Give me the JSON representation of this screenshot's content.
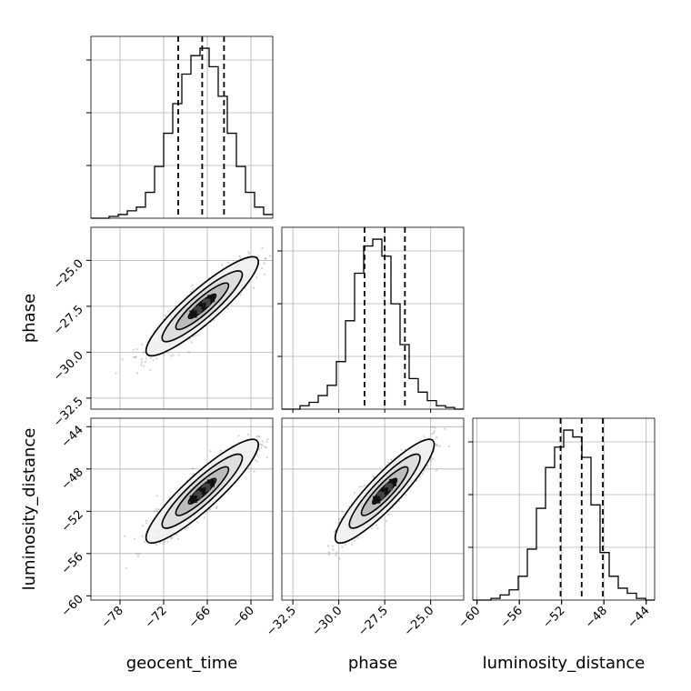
{
  "chart_data": {
    "type": "corner",
    "parameters": [
      "geocent_time",
      "phase",
      "luminosity_distance"
    ],
    "axis_labels": {
      "x": [
        "geocent_time",
        "phase",
        "luminosity_distance"
      ],
      "y": [
        "phase",
        "luminosity_distance"
      ]
    },
    "ranges": {
      "geocent_time": [
        -82,
        -57
      ],
      "phase": [
        -33.1,
        -23.2
      ],
      "luminosity_distance": [
        -60.4,
        -43.2
      ]
    },
    "ticks": {
      "geocent_time": [
        -78,
        -72,
        -66,
        -60
      ],
      "phase": [
        -32.5,
        -30.0,
        -27.5,
        -25.0
      ],
      "luminosity_distance": [
        -60,
        -56,
        -52,
        -48,
        -44
      ]
    },
    "tick_labels": {
      "geocent_time": [
        "−78",
        "−72",
        "−66",
        "−60"
      ],
      "phase": [
        "−32.5",
        "−30.0",
        "−27.5",
        "−25.0"
      ],
      "luminosity_distance": [
        "−60",
        "−56",
        "−52",
        "−48",
        "−44"
      ]
    },
    "quantiles": {
      "geocent_time": [
        -70.0,
        -66.7,
        -63.7
      ],
      "phase": [
        -28.6,
        -27.5,
        -26.4
      ],
      "luminosity_distance": [
        -52.1,
        -50.1,
        -48.1
      ]
    },
    "histograms": {
      "geocent_time": {
        "edges_start": -82,
        "bin_width": 1.25,
        "counts": [
          0,
          0,
          1,
          2,
          4,
          6,
          14,
          28,
          46,
          62,
          78,
          88,
          92,
          82,
          66,
          46,
          28,
          14,
          6,
          2
        ]
      },
      "phase": {
        "edges_start": -33.1,
        "bin_width": 0.495,
        "counts": [
          0,
          0,
          2,
          4,
          8,
          14,
          28,
          52,
          80,
          96,
          100,
          90,
          62,
          38,
          18,
          10,
          5,
          2,
          1,
          0
        ]
      },
      "luminosity_distance": {
        "edges_start": -60.4,
        "bin_width": 0.86,
        "counts": [
          0,
          0,
          1,
          3,
          6,
          14,
          30,
          54,
          78,
          90,
          100,
          96,
          84,
          56,
          28,
          14,
          7,
          4,
          1,
          0
        ]
      }
    },
    "correlation": 0.9,
    "grid": true
  }
}
